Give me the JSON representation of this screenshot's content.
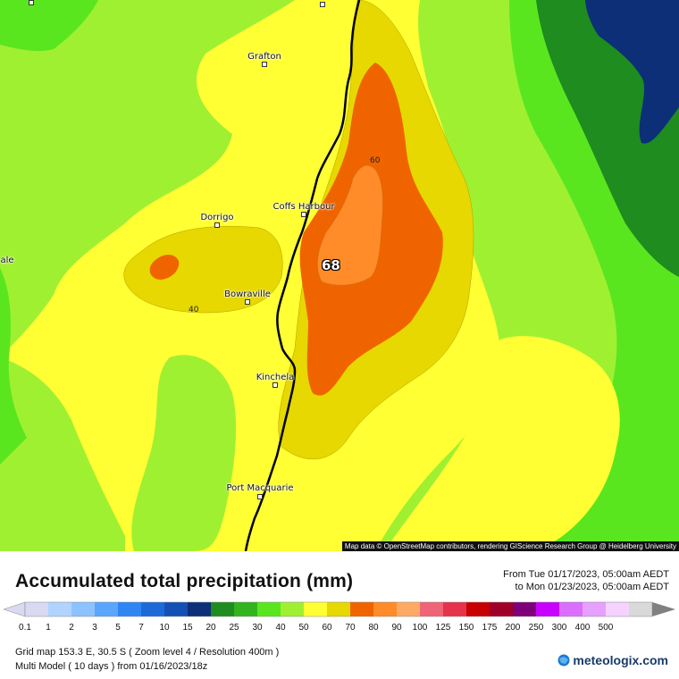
{
  "map": {
    "towns": [
      {
        "name": "Grafton"
      },
      {
        "name": "Dorrigo"
      },
      {
        "name": "Coffs Harbour"
      },
      {
        "name": "Bowraville"
      },
      {
        "name": "Kinchela"
      },
      {
        "name": "Port Macquarie"
      },
      {
        "name": "ale"
      }
    ],
    "contour_labels": [
      "60",
      "40"
    ],
    "max_value": "68",
    "attribution": "Map data © OpenStreetMap contributors, rendering GIScience Research Group @ Heidelberg University"
  },
  "legend": {
    "title": "Accumulated total precipitation (mm)",
    "period_from": "From Tue 01/17/2023, 05:00am AEDT",
    "period_to": "to Mon 01/23/2023, 05:00am AEDT",
    "scale_labels": [
      "0.1",
      "1",
      "2",
      "3",
      "5",
      "7",
      "10",
      "15",
      "20",
      "25",
      "30",
      "40",
      "50",
      "60",
      "70",
      "80",
      "90",
      "100",
      "125",
      "150",
      "175",
      "200",
      "250",
      "300",
      "400",
      "500"
    ],
    "scale_colors": [
      "#d9d9f2",
      "#b0d4ff",
      "#8cc2ff",
      "#5aa6ff",
      "#2e86f5",
      "#1b6ad8",
      "#1450b4",
      "#0c2f78",
      "#1e8c1e",
      "#32b41e",
      "#5ae61e",
      "#a0f032",
      "#ffff33",
      "#e6d800",
      "#f06400",
      "#ff8c28",
      "#ffaa64",
      "#f06478",
      "#e6324b",
      "#c80000",
      "#a00028",
      "#7d0078",
      "#c800ff",
      "#dc6eff",
      "#e6a0ff",
      "#f5d2ff",
      "#d9d9d9"
    ],
    "footer_line1": "Grid map 153.3 E, 30.5 S ( Zoom level 4 / Resolution 400m )",
    "footer_line2": "Multi Model ( 10 days ) from  01/16/2023/18z",
    "logo": "meteologix.com"
  }
}
